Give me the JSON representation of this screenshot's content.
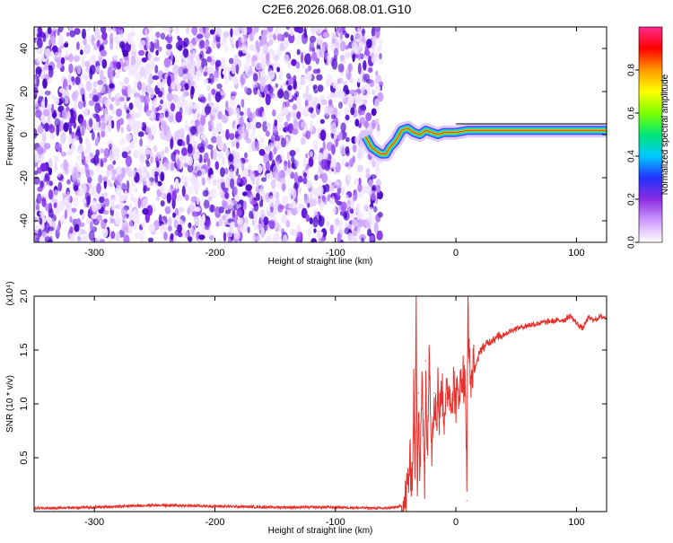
{
  "figure_title": "C2E6.2026.068.08.01.G10",
  "colors": {
    "snr_line": "#e8302c",
    "speckle_dark": "#5a10d8",
    "speckle_light": "#c9a8f5",
    "colorbar": [
      "#ffffff",
      "#cf9cff",
      "#8a2be2",
      "#2233ff",
      "#00c8ff",
      "#00e676",
      "#7cff00",
      "#ffff00",
      "#ff9900",
      "#ff0000",
      "#ff2a8c"
    ]
  },
  "chart_data": [
    {
      "type": "heatmap",
      "title": "C2E6.2026.068.08.01.G10",
      "xlabel": "Height of straight line (km)",
      "ylabel": "Frequency (Hz)",
      "xlim": [
        -350,
        125
      ],
      "ylim": [
        -50,
        50
      ],
      "x_ticks": [
        -300,
        -200,
        -100,
        0,
        100
      ],
      "y_ticks": [
        -40,
        -20,
        0,
        20,
        40
      ],
      "noise_region_x": [
        -350,
        -62
      ],
      "signal_trace": {
        "x": [
          -75,
          -70,
          -65,
          -62,
          -58,
          -55,
          -50,
          -45,
          -40,
          -35,
          -30,
          -25,
          -20,
          -15,
          -10,
          -5,
          0,
          10,
          20,
          40,
          60,
          80,
          90,
          100,
          110,
          125
        ],
        "y": [
          -1,
          -6,
          -8,
          -9,
          -9,
          -6,
          -3,
          2,
          3,
          1,
          0,
          2,
          1,
          0,
          1,
          1,
          1,
          2,
          2,
          2,
          2,
          2,
          2,
          2,
          2,
          2
        ]
      },
      "colorbar": {
        "label": "Normalized spectral amplitude",
        "ticks": [
          "0.0",
          "0.2",
          "0.4",
          "0.6",
          "0.8"
        ],
        "range": [
          0,
          1
        ]
      },
      "grid": false
    },
    {
      "type": "line",
      "xlabel": "Height of straight line (km)",
      "ylabel": "SNR (10 * v/v)",
      "y_multiplier": "(x10⁴)",
      "xlim": [
        -350,
        125
      ],
      "ylim": [
        0,
        2.0
      ],
      "x_ticks": [
        -300,
        -200,
        -100,
        0,
        100
      ],
      "y_ticks": [
        "0.5",
        "1.0",
        "1.5",
        "2.0"
      ],
      "series": [
        {
          "x": [
            -350,
            -300,
            -250,
            -200,
            -150,
            -100,
            -60,
            -50,
            -45,
            -42,
            -40,
            -38,
            -36,
            -35,
            -34,
            -33,
            -32,
            -31,
            -30,
            -28,
            -26,
            -25,
            -24,
            -22,
            -20,
            -18,
            -16,
            -15,
            -14,
            -12,
            -10,
            -8,
            -6,
            -4,
            -2,
            0,
            2,
            4,
            6,
            8,
            9,
            10,
            11,
            12,
            14,
            16,
            18,
            20,
            25,
            30,
            35,
            40,
            50,
            60,
            70,
            80,
            90,
            95,
            100,
            105,
            110,
            115,
            120,
            125
          ],
          "y": [
            0.03,
            0.04,
            0.06,
            0.05,
            0.04,
            0.04,
            0.03,
            0.04,
            0.05,
            0.1,
            0.25,
            0.45,
            0.3,
            1.2,
            0.3,
            1.9,
            0.25,
            1.1,
            0.35,
            1.2,
            0.25,
            1.4,
            0.5,
            1.45,
            0.6,
            1.1,
            0.8,
            1.3,
            0.8,
            1.2,
            0.9,
            1.05,
            1.15,
            1.0,
            1.2,
            1.05,
            1.1,
            1.2,
            1.25,
            1.15,
            0.1,
            2.0,
            1.4,
            1.2,
            1.3,
            1.35,
            1.4,
            1.5,
            1.55,
            1.6,
            1.62,
            1.65,
            1.7,
            1.73,
            1.75,
            1.77,
            1.78,
            1.82,
            1.75,
            1.7,
            1.8,
            1.78,
            1.81,
            1.8
          ]
        }
      ],
      "grid": false
    }
  ]
}
